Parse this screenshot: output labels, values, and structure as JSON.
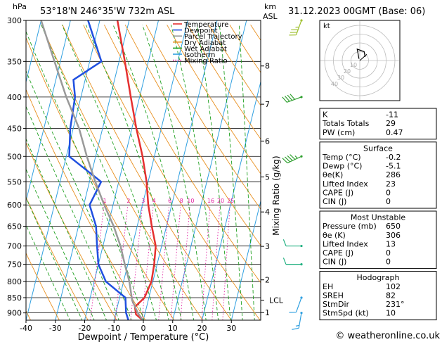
{
  "header": {
    "hpa_label": "hPa",
    "location": "53°18'N  246°35'W  732m  ASL",
    "km_label": "km",
    "asl_label": "ASL",
    "datetime": "31.12.2023  00GMT  (Base: 06)"
  },
  "footer": {
    "credit": "© weatheronline.co.uk"
  },
  "chart_data": {
    "type": "skewt",
    "xlabel": "Dewpoint / Temperature (°C)",
    "ylabel_right": "Mixing Ratio (g/kg)",
    "pressure_ticks": [
      300,
      350,
      400,
      450,
      500,
      550,
      600,
      650,
      700,
      750,
      800,
      850,
      900
    ],
    "temp_ticks": [
      -40,
      -30,
      -20,
      -10,
      0,
      10,
      20,
      30
    ],
    "xlim": [
      -40,
      40
    ],
    "ylim_hpa": [
      925,
      300
    ],
    "km_ticks": [
      {
        "km": "8",
        "p": 356
      },
      {
        "km": "7",
        "p": 411
      },
      {
        "km": "6",
        "p": 472
      },
      {
        "km": "5",
        "p": 540
      },
      {
        "km": "4",
        "p": 616
      },
      {
        "km": "3",
        "p": 701
      },
      {
        "km": "2",
        "p": 795
      },
      {
        "km": "1",
        "p": 899
      }
    ],
    "lcl": {
      "label": "LCL",
      "p": 858
    },
    "mixing_ratio_labels": [
      "1",
      "2",
      "3",
      "4",
      "6",
      "8",
      "10",
      "16",
      "20",
      "25"
    ],
    "mixing_ratio_values": [
      1,
      2,
      3,
      4,
      6,
      8,
      10,
      16,
      20,
      25
    ],
    "legend": [
      {
        "name": "Temperature",
        "color": "#e53030",
        "style": "solid"
      },
      {
        "name": "Dewpoint",
        "color": "#2050e0",
        "style": "solid"
      },
      {
        "name": "Parcel Trajectory",
        "color": "#999999",
        "style": "solid"
      },
      {
        "name": "Dry Adiabat",
        "color": "#e89020",
        "style": "solid"
      },
      {
        "name": "Wet Adiabat",
        "color": "#20a020",
        "style": "solid"
      },
      {
        "name": "Isotherm",
        "color": "#30a0e0",
        "style": "solid"
      },
      {
        "name": "Mixing Ratio",
        "color": "#e020a0",
        "style": "dotted"
      }
    ],
    "series": [
      {
        "name": "Temperature",
        "color": "#e53030",
        "points": [
          [
            -34,
            300
          ],
          [
            -28,
            350
          ],
          [
            -23,
            400
          ],
          [
            -18.5,
            450
          ],
          [
            -14,
            500
          ],
          [
            -10.5,
            550
          ],
          [
            -8,
            600
          ],
          [
            -5,
            650
          ],
          [
            -2,
            700
          ],
          [
            -1,
            750
          ],
          [
            -0.5,
            800
          ],
          [
            -1.5,
            850
          ],
          [
            -4,
            880
          ],
          [
            -3,
            905
          ],
          [
            -0.2,
            925
          ]
        ]
      },
      {
        "name": "Dewpoint",
        "color": "#2050e0",
        "points": [
          [
            -44,
            300
          ],
          [
            -36,
            350
          ],
          [
            -44,
            375
          ],
          [
            -42,
            400
          ],
          [
            -41,
            450
          ],
          [
            -39,
            500
          ],
          [
            -26,
            550
          ],
          [
            -28,
            600
          ],
          [
            -24,
            650
          ],
          [
            -22,
            700
          ],
          [
            -20,
            750
          ],
          [
            -16,
            800
          ],
          [
            -8,
            850
          ],
          [
            -6.5,
            900
          ],
          [
            -5.1,
            925
          ]
        ]
      },
      {
        "name": "Parcel Trajectory",
        "color": "#999999",
        "points": [
          [
            -60,
            300
          ],
          [
            -52,
            350
          ],
          [
            -45,
            400
          ],
          [
            -38,
            450
          ],
          [
            -33,
            500
          ],
          [
            -28,
            550
          ],
          [
            -23,
            600
          ],
          [
            -18,
            650
          ],
          [
            -14,
            700
          ],
          [
            -11,
            750
          ],
          [
            -8,
            800
          ],
          [
            -5.5,
            858
          ],
          [
            -2.5,
            900
          ],
          [
            -0.2,
            925
          ]
        ]
      }
    ]
  },
  "hodograph": {
    "label": "kt",
    "ring_labels": [
      "10",
      "20",
      "30",
      "40"
    ],
    "trace_uv": [
      [
        6,
        4
      ],
      [
        5,
        10
      ],
      [
        -3,
        13
      ],
      [
        -2,
        8
      ],
      [
        -1,
        2
      ]
    ],
    "storm_uv": [
      -8,
      7
    ],
    "color": "#000000"
  },
  "wind_barbs": [
    {
      "p": 300,
      "color": "#a0c030",
      "dir": 200,
      "spd": 25
    },
    {
      "p": 400,
      "color": "#30a030",
      "dir": 250,
      "spd": 40
    },
    {
      "p": 500,
      "color": "#30a030",
      "dir": 245,
      "spd": 35
    },
    {
      "p": 700,
      "color": "#20b080",
      "dir": 270,
      "spd": 10
    },
    {
      "p": 750,
      "color": "#20b080",
      "dir": 270,
      "spd": 10
    },
    {
      "p": 850,
      "color": "#30a0e0",
      "dir": 200,
      "spd": 10
    },
    {
      "p": 900,
      "color": "#30a0e0",
      "dir": 190,
      "spd": 5
    }
  ],
  "indices": {
    "top": [
      [
        "K",
        "-11"
      ],
      [
        "Totals Totals",
        "29"
      ],
      [
        "PW (cm)",
        "0.47"
      ]
    ],
    "surface": {
      "title": "Surface",
      "rows": [
        [
          "Temp (°C)",
          "-0.2"
        ],
        [
          "Dewp (°C)",
          "-5.1"
        ],
        [
          "θe(K)",
          "286"
        ],
        [
          "Lifted Index",
          "23"
        ],
        [
          "CAPE (J)",
          "0"
        ],
        [
          "CIN (J)",
          "0"
        ]
      ]
    },
    "most_unstable": {
      "title": "Most Unstable",
      "rows": [
        [
          "Pressure (mb)",
          "650"
        ],
        [
          "θe (K)",
          "306"
        ],
        [
          "Lifted Index",
          "13"
        ],
        [
          "CAPE (J)",
          "0"
        ],
        [
          "CIN (J)",
          "0"
        ]
      ]
    },
    "hodograph": {
      "title": "Hodograph",
      "rows": [
        [
          "EH",
          "102"
        ],
        [
          "SREH",
          "82"
        ],
        [
          "StmDir",
          "231°"
        ],
        [
          "StmSpd (kt)",
          "10"
        ]
      ]
    }
  }
}
